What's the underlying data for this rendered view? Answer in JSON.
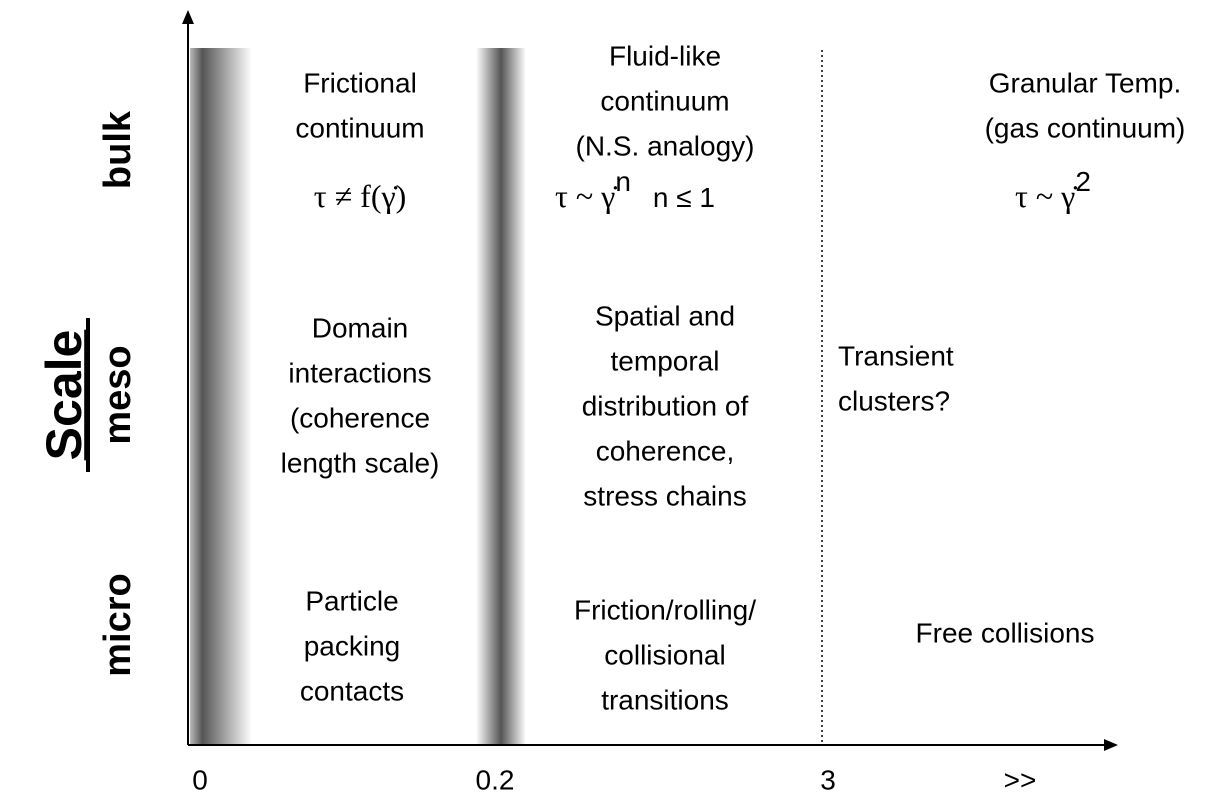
{
  "axis": {
    "title": "Scale",
    "rows": [
      "bulk",
      "meso",
      "micro"
    ],
    "x_labels": [
      "0",
      "0.2",
      "3",
      ">>"
    ]
  },
  "cells": [
    {
      "lines": [
        "Frictional",
        "continuum"
      ]
    },
    {
      "lines": [
        "Fluid-like",
        "continuum",
        "(N.S. analogy)"
      ]
    },
    {
      "lines": [
        "Granular Temp.",
        "(gas continuum)"
      ]
    },
    {
      "lines": [
        "Domain",
        "interactions",
        "(coherence",
        "length scale)"
      ]
    },
    {
      "lines": [
        "Spatial and",
        "temporal",
        "distribution of",
        "coherence,",
        "stress chains"
      ]
    },
    {
      "lines": [
        "Transient",
        "clusters?"
      ]
    },
    {
      "lines": [
        "Particle",
        "packing",
        "contacts"
      ]
    },
    {
      "lines": [
        "Friction/rolling/",
        "collisional",
        "transitions"
      ]
    },
    {
      "lines": [
        "Free collisions"
      ]
    }
  ],
  "formulas": [
    {
      "text": "τ ≠ f(γ̇)"
    },
    {
      "text": "τ ~ γ̇",
      "sup": "n",
      "condition": "n ≤ 1"
    },
    {
      "text": "τ ~ γ̇",
      "sup": "2"
    }
  ]
}
